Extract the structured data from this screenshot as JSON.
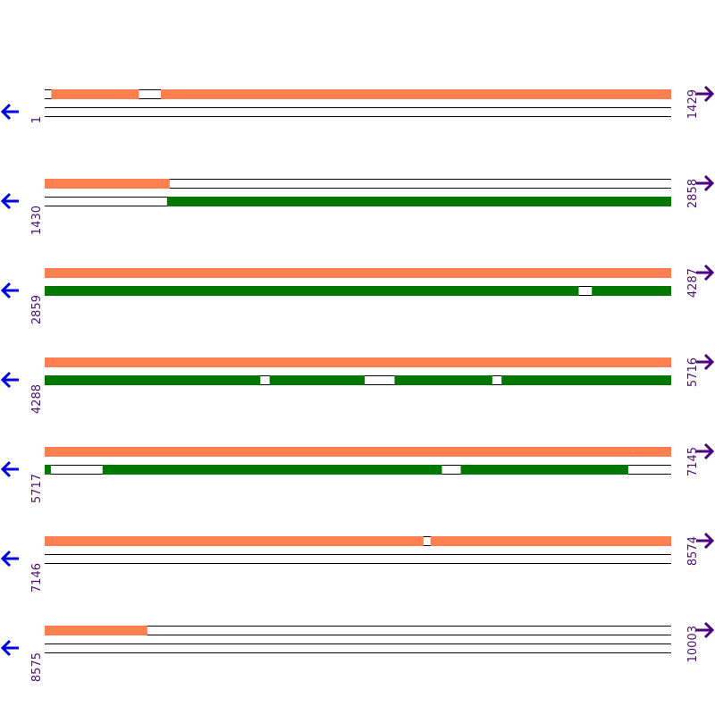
{
  "colors": {
    "forward_feature": "#ff7f50",
    "reverse_feature": "#007700",
    "left_arrow": "#0000dd",
    "right_arrow": "#4b0082",
    "position_label": "#4a1070",
    "track_line": "#000000"
  },
  "icons": {
    "left": "arrow-left-icon",
    "right": "arrow-right-icon"
  },
  "total_bases": 10003,
  "rows": [
    {
      "start": "1",
      "end": "1429",
      "start_value": 1,
      "end_value": 1429,
      "lanes": [
        {
          "strand": "forward",
          "color": "orange",
          "segments": [
            [
              1,
              15
            ],
            [
              216,
              265
            ],
            [
              1429,
              1429
            ]
          ]
        },
        {
          "strand": "reverse",
          "color": "green",
          "segments": []
        }
      ]
    },
    {
      "start": "1430",
      "end": "2858",
      "start_value": 1430,
      "end_value": 2858,
      "lanes": [
        {
          "strand": "forward",
          "color": "orange",
          "segments": [
            [
              1715,
              2858
            ]
          ]
        },
        {
          "strand": "reverse",
          "color": "green",
          "segments": [
            [
              1430,
              1708
            ]
          ]
        }
      ]
    },
    {
      "start": "2859",
      "end": "4287",
      "start_value": 2859,
      "end_value": 4287,
      "lanes": [
        {
          "strand": "forward",
          "color": "orange",
          "segments": [
            [
              2859,
              4287
            ]
          ]
        },
        {
          "strand": "reverse",
          "color": "green",
          "segments": [
            [
              4077,
              4106
            ]
          ]
        }
      ]
    },
    {
      "start": "4288",
      "end": "5716",
      "start_value": 4288,
      "end_value": 5716,
      "lanes": [
        {
          "strand": "forward",
          "color": "orange",
          "segments": [
            [
              4288,
              5716
            ]
          ]
        },
        {
          "strand": "reverse",
          "color": "green",
          "segments": [
            [
              4780,
              4800
            ],
            [
              5018,
              5085
            ],
            [
              5309,
              5329
            ]
          ]
        }
      ]
    },
    {
      "start": "5717",
      "end": "7145",
      "start_value": 5717,
      "end_value": 7145,
      "lanes": [
        {
          "strand": "forward",
          "color": "orange",
          "segments": [
            [
              5717,
              7058
            ]
          ]
        },
        {
          "strand": "reverse",
          "color": "green",
          "segments": [
            [
              5731,
              5848
            ],
            [
              6623,
              6665
            ],
            [
              7048,
              7145
            ]
          ]
        }
      ]
    },
    {
      "start": "7146",
      "end": "8574",
      "start_value": 7146,
      "end_value": 8574,
      "lanes": [
        {
          "strand": "forward",
          "color": "orange",
          "segments": [
            [
              8010,
              8025
            ]
          ]
        },
        {
          "strand": "reverse",
          "color": "green",
          "segments": [
            [
              7146,
              8574
            ]
          ]
        }
      ]
    },
    {
      "start": "8575",
      "end": "10003",
      "start_value": 8575,
      "end_value": 10003,
      "lanes": [
        {
          "strand": "forward",
          "color": "orange",
          "segments": [
            [
              8809,
              10003
            ]
          ]
        },
        {
          "strand": "reverse",
          "color": "green",
          "segments": [
            [
              8575,
              10003
            ]
          ]
        }
      ]
    }
  ],
  "features": {
    "orange": [
      [
        16,
        215
      ],
      [
        266,
        1714
      ],
      [
        2859,
        7057
      ],
      [
        7058,
        8009
      ],
      [
        8026,
        8808
      ]
    ],
    "green": [
      [
        1709,
        4076
      ],
      [
        4107,
        4779
      ],
      [
        4801,
        5017
      ],
      [
        5086,
        5308
      ],
      [
        5330,
        5730
      ],
      [
        5849,
        6622
      ],
      [
        6666,
        7047
      ]
    ]
  }
}
